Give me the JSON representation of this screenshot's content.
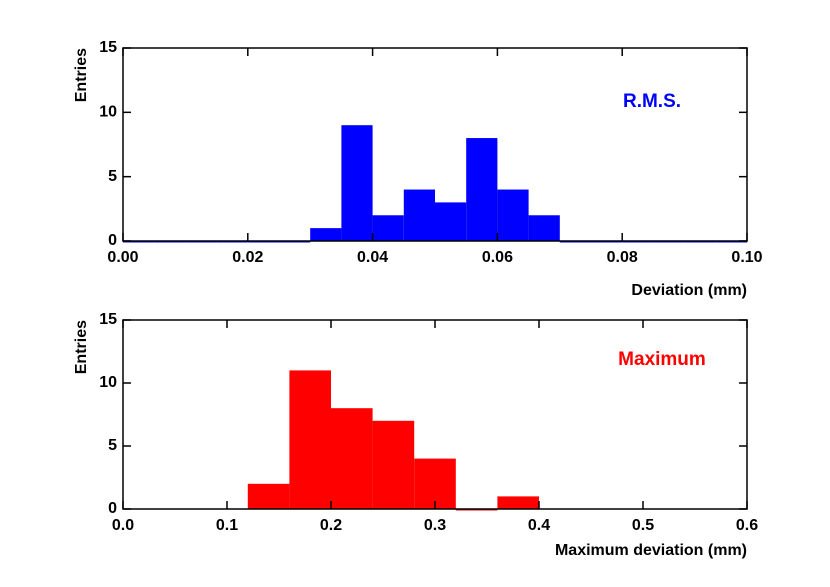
{
  "chart_data": [
    {
      "type": "histogram",
      "x_label": "Deviation (mm)",
      "y_label": "Entries",
      "annotation": "R.M.S.",
      "color": "#0000ff",
      "bins": [
        0,
        0.005,
        0.01,
        0.015,
        0.02,
        0.025,
        0.03,
        0.035,
        0.04,
        0.045,
        0.05,
        0.055,
        0.06,
        0.065,
        0.07,
        0.075,
        0.08,
        0.085,
        0.09,
        0.095,
        0.1
      ],
      "values": [
        0,
        0,
        0,
        0,
        0,
        0,
        1,
        9,
        2,
        4,
        3,
        8,
        4,
        2,
        0,
        0,
        0,
        0,
        0,
        0
      ],
      "xlim": [
        0,
        0.1
      ],
      "xticks": [
        {
          "value": 0,
          "label": "0.00"
        },
        0.02,
        0.04,
        0.06,
        0.08,
        {
          "value": 0.1,
          "label": "0.10"
        }
      ],
      "ylim": [
        0,
        15
      ],
      "yticks": [
        0,
        5,
        10,
        15
      ]
    },
    {
      "type": "histogram",
      "x_label": "Maximum deviation (mm)",
      "y_label": "Entries",
      "annotation": "Maximum",
      "color": "#ff0000",
      "bins": [
        0.12,
        0.16,
        0.2,
        0.24,
        0.28,
        0.32,
        0.36,
        0.4
      ],
      "values": [
        2,
        11,
        8,
        7,
        4,
        0,
        1
      ],
      "xlim": [
        0,
        0.6
      ],
      "xticks": [
        {
          "value": 0,
          "label": "0.0"
        },
        0.1,
        0.2,
        0.3,
        0.4,
        0.5,
        0.6
      ],
      "ylim": [
        0,
        15
      ],
      "yticks": [
        0,
        5,
        10,
        15
      ]
    }
  ]
}
